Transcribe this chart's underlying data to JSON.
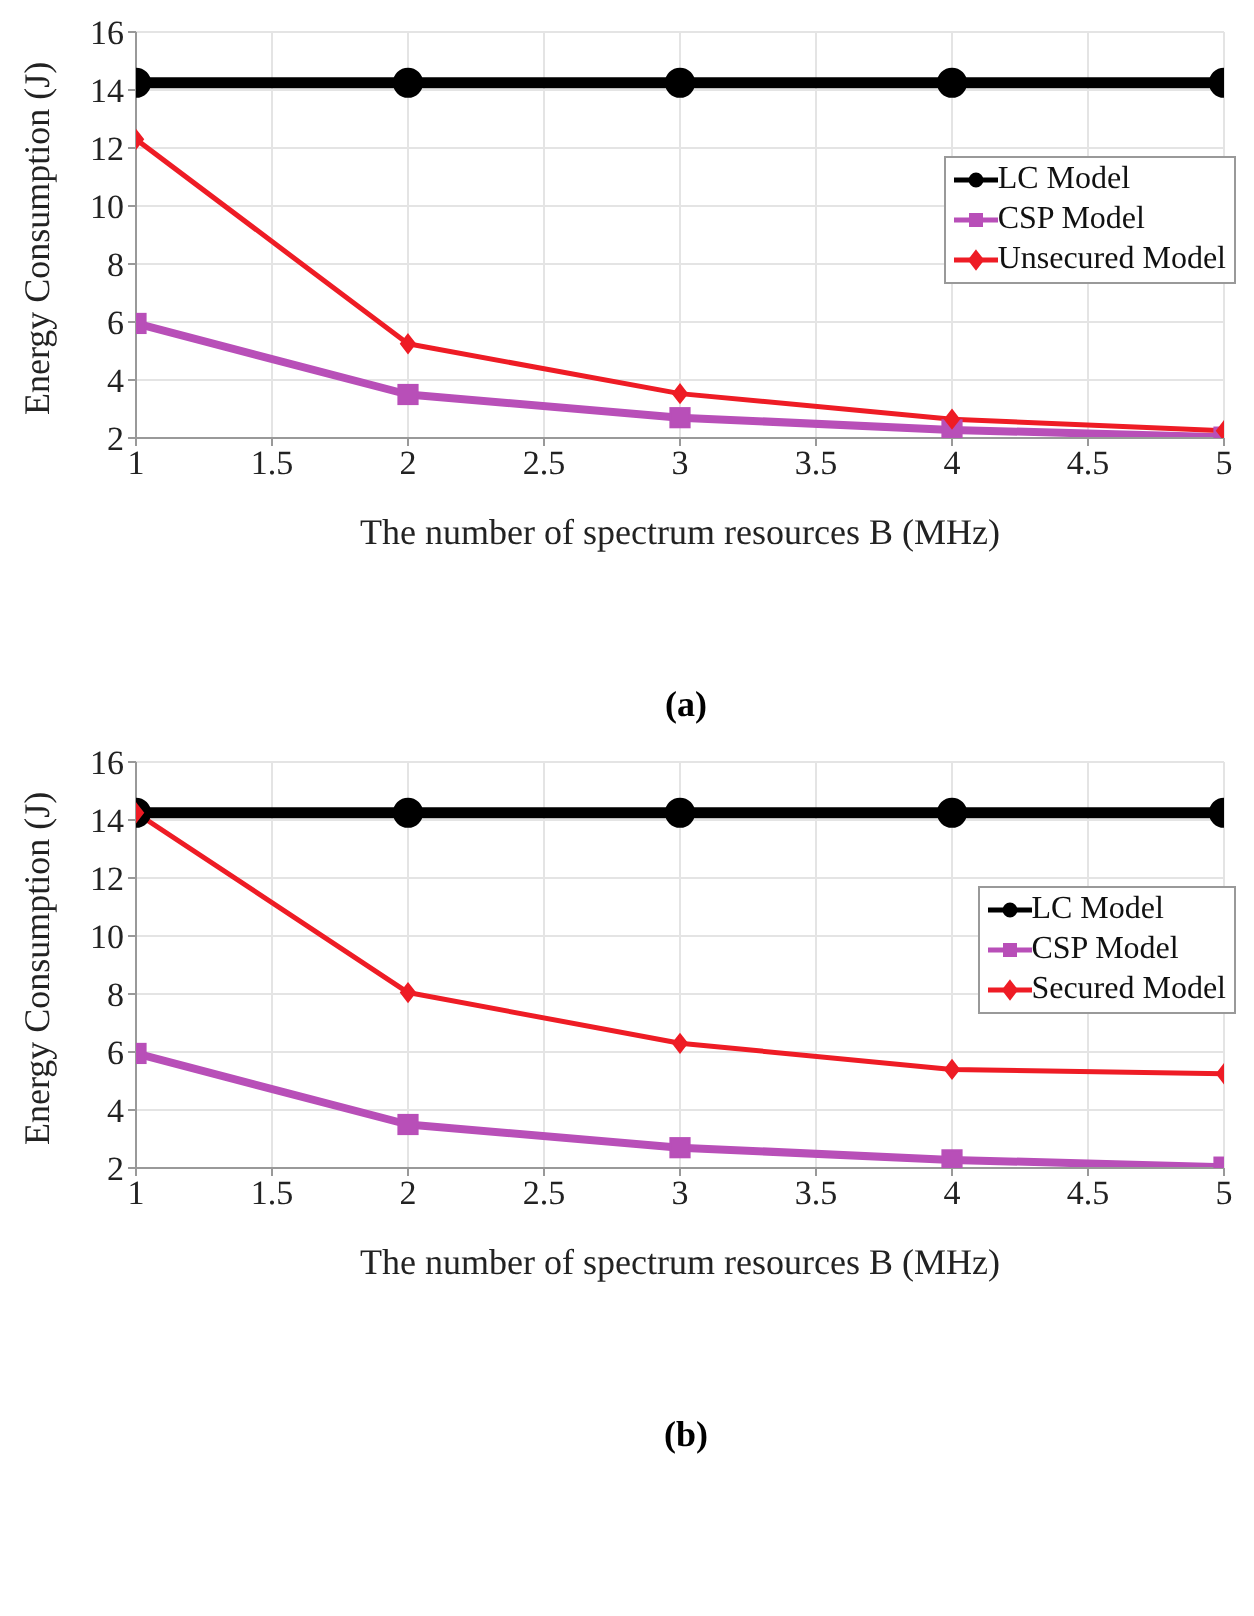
{
  "chart_data": [
    {
      "type": "line",
      "xlabel": "The number of spectrum resources B (MHz)",
      "ylabel": "Energy Consumption (J)",
      "annotations": [
        "(a)"
      ],
      "x": [
        1,
        2,
        3,
        4,
        5
      ],
      "series": [
        {
          "name": "LC Model",
          "color": "#000000",
          "marker": "circle",
          "values": [
            14.25,
            14.25,
            14.25,
            14.25,
            14.25
          ]
        },
        {
          "name": "CSP Model",
          "color": "#b84fb8",
          "marker": "square",
          "values": [
            5.95,
            3.5,
            2.7,
            2.28,
            2.03
          ]
        },
        {
          "name": "Unsecured Model",
          "color": "#ee1c25",
          "marker": "diamond",
          "values": [
            12.3,
            5.25,
            3.53,
            2.65,
            2.25
          ]
        }
      ],
      "xlim": [
        1,
        5
      ],
      "xticks": [
        1,
        1.5,
        2,
        2.5,
        3,
        3.5,
        4,
        4.5,
        5
      ],
      "ylim": [
        2,
        16
      ],
      "yticks": [
        2,
        4,
        6,
        8,
        10,
        12,
        14,
        16
      ],
      "grid": true,
      "legend": "right",
      "line_style": "solid"
    },
    {
      "type": "line",
      "xlabel": "The number of spectrum resources B (MHz)",
      "ylabel": "Energy Consumption (J)",
      "annotations": [
        "(b)"
      ],
      "x": [
        1,
        2,
        3,
        4,
        5
      ],
      "series": [
        {
          "name": "LC Model",
          "color": "#000000",
          "marker": "circle",
          "values": [
            14.25,
            14.25,
            14.25,
            14.25,
            14.25
          ]
        },
        {
          "name": "CSP Model",
          "color": "#b84fb8",
          "marker": "square",
          "values": [
            5.95,
            3.5,
            2.7,
            2.28,
            2.03
          ]
        },
        {
          "name": "Secured Model",
          "color": "#ee1c25",
          "marker": "diamond",
          "values": [
            14.25,
            8.05,
            6.3,
            5.4,
            5.25
          ]
        }
      ],
      "xlim": [
        1,
        5
      ],
      "xticks": [
        1,
        1.5,
        2,
        2.5,
        3,
        3.5,
        4,
        4.5,
        5
      ],
      "ylim": [
        2,
        16
      ],
      "yticks": [
        2,
        4,
        6,
        8,
        10,
        12,
        14,
        16
      ],
      "grid": true,
      "legend": "right",
      "line_style": "solid"
    }
  ]
}
